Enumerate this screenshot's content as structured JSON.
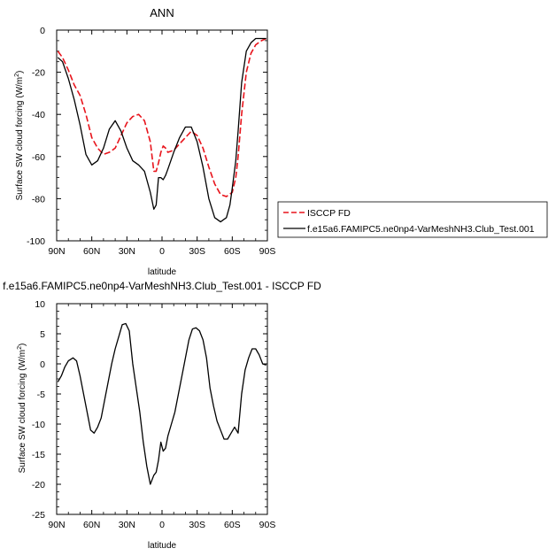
{
  "chart_data": [
    {
      "type": "line",
      "title": "ANN",
      "ylabel": "Surface SW cloud forcing (W/m",
      "ylabel_sup": "2",
      "ylabel_close": ")",
      "xlabel": "latitude",
      "xlim": [
        90,
        -90
      ],
      "ylim": [
        -100,
        0
      ],
      "x_ticks": [
        90,
        60,
        30,
        0,
        -30,
        -60,
        -90
      ],
      "x_tick_labels": [
        "90N",
        "60N",
        "30N",
        "0",
        "30S",
        "60S",
        "90S"
      ],
      "y_ticks": [
        0,
        -20,
        -40,
        -60,
        -80,
        -100
      ],
      "y_tick_labels": [
        "0",
        "-20",
        "-40",
        "-60",
        "-80",
        "-100"
      ],
      "legend_position": "right",
      "series": [
        {
          "name": "ISCCP FD",
          "color": "#e8141c",
          "dash": true,
          "x": [
            89,
            85,
            80,
            75,
            70,
            65,
            60,
            55,
            50,
            45,
            40,
            35,
            30,
            25,
            20,
            15,
            10,
            7,
            5,
            3,
            1,
            -1,
            -3,
            -5,
            -10,
            -15,
            -20,
            -25,
            -30,
            -35,
            -40,
            -45,
            -50,
            -55,
            -60,
            -63,
            -65,
            -68,
            -72,
            -76,
            -80,
            -85,
            -89
          ],
          "y": [
            -10,
            -13,
            -19,
            -26,
            -31,
            -40,
            -51,
            -56,
            -59,
            -58,
            -56,
            -50,
            -44,
            -41,
            -40,
            -43,
            -53,
            -67,
            -67,
            -63,
            -58,
            -55,
            -56,
            -58,
            -57,
            -54,
            -51,
            -48,
            -50,
            -56,
            -65,
            -73,
            -78,
            -79,
            -77,
            -70,
            -60,
            -40,
            -20,
            -11,
            -7,
            -5,
            -4
          ]
        },
        {
          "name": "f.e15a6.FAMIPC5.ne0np4-VarMeshNH3.Club_Test.001",
          "color": "#000000",
          "dash": false,
          "x": [
            89,
            85,
            80,
            75,
            70,
            65,
            60,
            55,
            50,
            45,
            40,
            35,
            30,
            25,
            20,
            15,
            10,
            7,
            5,
            3,
            1,
            -1,
            -3,
            -5,
            -10,
            -15,
            -20,
            -25,
            -30,
            -35,
            -40,
            -45,
            -50,
            -55,
            -58,
            -60,
            -63,
            -65,
            -68,
            -72,
            -76,
            -80,
            -85,
            -89
          ],
          "y": [
            -13,
            -15,
            -23,
            -33,
            -45,
            -59,
            -64,
            -62,
            -56,
            -47,
            -43,
            -48,
            -56,
            -62,
            -64,
            -67,
            -77,
            -85,
            -83,
            -70,
            -70,
            -71,
            -69,
            -66,
            -58,
            -51,
            -46,
            -46,
            -53,
            -65,
            -80,
            -89,
            -91,
            -89,
            -83,
            -75,
            -62,
            -48,
            -25,
            -10,
            -6,
            -4,
            -4,
            -4
          ]
        }
      ]
    },
    {
      "type": "line",
      "title": "f.e15a6.FAMIPC5.ne0np4-VarMeshNH3.Club_Test.001 - ISCCP FD",
      "ylabel": "Surface SW cloud forcing (W/m",
      "ylabel_sup": "2",
      "ylabel_close": ")",
      "xlabel": "latitude",
      "xlim": [
        90,
        -90
      ],
      "ylim": [
        -25,
        10
      ],
      "x_ticks": [
        90,
        60,
        30,
        0,
        -30,
        -60,
        -90
      ],
      "x_tick_labels": [
        "90N",
        "60N",
        "30N",
        "0",
        "30S",
        "60S",
        "90S"
      ],
      "y_ticks": [
        10,
        5,
        0,
        -5,
        -10,
        -15,
        -20,
        -25
      ],
      "y_tick_labels": [
        "10",
        "5",
        "0",
        "-5",
        "-10",
        "-15",
        "-20",
        "-25"
      ],
      "series": [
        {
          "color": "#000000",
          "dash": false,
          "x": [
            89,
            86,
            83,
            80,
            76,
            73,
            70,
            67,
            64,
            61,
            58,
            55,
            52,
            49,
            46,
            43,
            40,
            37,
            34,
            31,
            28,
            25,
            22,
            19,
            16,
            13,
            10,
            7,
            5,
            3,
            1,
            -1,
            -3,
            -5,
            -8,
            -11,
            -14,
            -17,
            -20,
            -23,
            -26,
            -29,
            -32,
            -35,
            -38,
            -41,
            -44,
            -47,
            -50,
            -53,
            -56,
            -59,
            -62,
            -65,
            -68,
            -71,
            -74,
            -77,
            -80,
            -83,
            -86,
            -89
          ],
          "y": [
            -3,
            -2,
            -0.5,
            0.5,
            1,
            0.5,
            -2,
            -5,
            -8,
            -11,
            -11.5,
            -10.5,
            -9,
            -6,
            -3,
            0,
            2.5,
            4.5,
            6.5,
            6.7,
            5.5,
            0,
            -4,
            -8,
            -13,
            -17,
            -20,
            -18.5,
            -18,
            -16,
            -13,
            -14.5,
            -14,
            -12,
            -10,
            -8,
            -5,
            -2,
            1,
            4,
            5.8,
            6,
            5.5,
            4,
            1,
            -4,
            -7,
            -9.5,
            -11,
            -12.5,
            -12.5,
            -11.5,
            -10.5,
            -11.5,
            -5,
            -1,
            1,
            2.5,
            2.5,
            1.5,
            0,
            -0.2
          ]
        }
      ]
    }
  ]
}
